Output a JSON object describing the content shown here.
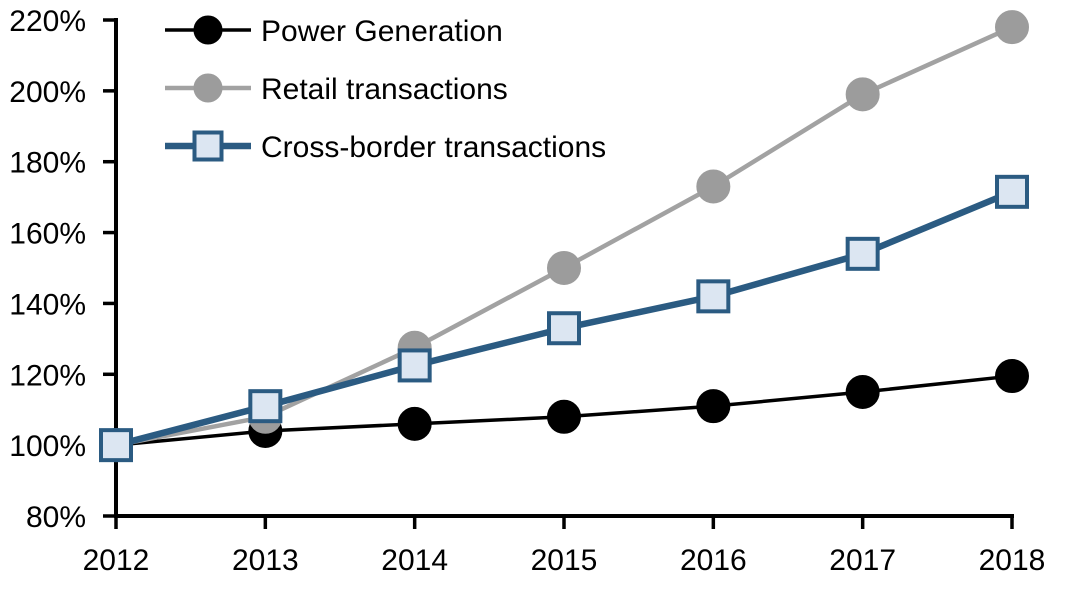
{
  "chart_data": {
    "type": "line",
    "title": "",
    "xlabel": "",
    "ylabel": "",
    "x_labels": [
      "2012",
      "2013",
      "2014",
      "2015",
      "2016",
      "2017",
      "2018"
    ],
    "y_axis": {
      "min": 80,
      "max": 220,
      "step": 20,
      "tick_labels": [
        "80%",
        "100%",
        "120%",
        "140%",
        "160%",
        "180%",
        "200%",
        "220%"
      ],
      "format": "percent"
    },
    "ylim": [
      80,
      220
    ],
    "grid": false,
    "background": "#FFFFFF",
    "axis_color": "#000000",
    "legend_position": "top-left",
    "series": [
      {
        "name": "Power Generation",
        "line_color": "#000000",
        "marker": "circle",
        "marker_fill": "#000000",
        "marker_stroke": "#000000",
        "line_width": 3.5,
        "values": [
          100,
          104,
          106,
          108,
          111,
          115,
          119.5
        ]
      },
      {
        "name": "Retail transactions",
        "line_color": "#A2A2A2",
        "marker": "circle",
        "marker_fill": "#9C9C9C",
        "marker_stroke": "#9C9C9C",
        "line_width": 4.5,
        "values": [
          100,
          108,
          127.5,
          150,
          173,
          199,
          218
        ]
      },
      {
        "name": "Cross-border transactions",
        "line_color": "#2B5B82",
        "marker": "square",
        "marker_fill": "#DCE6F2",
        "marker_stroke": "#2B5B82",
        "line_width": 6.5,
        "values": [
          100,
          111,
          122.5,
          133,
          142,
          154,
          171.5
        ]
      }
    ]
  }
}
